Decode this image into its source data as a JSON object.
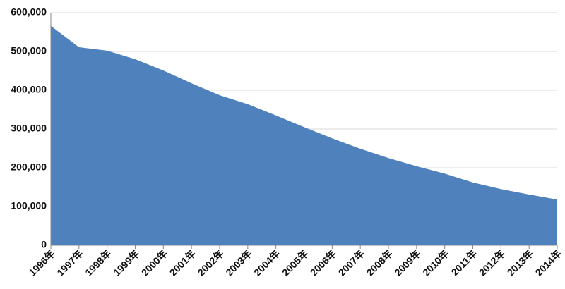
{
  "chart_data": {
    "type": "area",
    "categories": [
      "1996年",
      "1997年",
      "1998年",
      "1999年",
      "2000年",
      "2001年",
      "2002年",
      "2003年",
      "2004年",
      "2005年",
      "2006年",
      "2007年",
      "2008年",
      "2009年",
      "2010年",
      "2011年",
      "2012年",
      "2013年",
      "2014年"
    ],
    "values": [
      566000,
      511000,
      502000,
      480000,
      451000,
      418000,
      387000,
      364000,
      335000,
      305000,
      276000,
      249000,
      225000,
      204000,
      185000,
      162000,
      145000,
      131000,
      118000
    ],
    "color": "#4f81bd",
    "ylim": [
      0,
      600000
    ],
    "yticks": [
      0,
      {
        "value": 100000,
        "label": "100,000"
      },
      {
        "value": 200000,
        "label": "200,000"
      },
      {
        "value": 300000,
        "label": "300,000"
      },
      {
        "value": 400000,
        "label": "400,000"
      },
      {
        "value": 500000,
        "label": "500,000"
      },
      {
        "value": 600000,
        "label": "600,000"
      }
    ],
    "grid": true
  }
}
